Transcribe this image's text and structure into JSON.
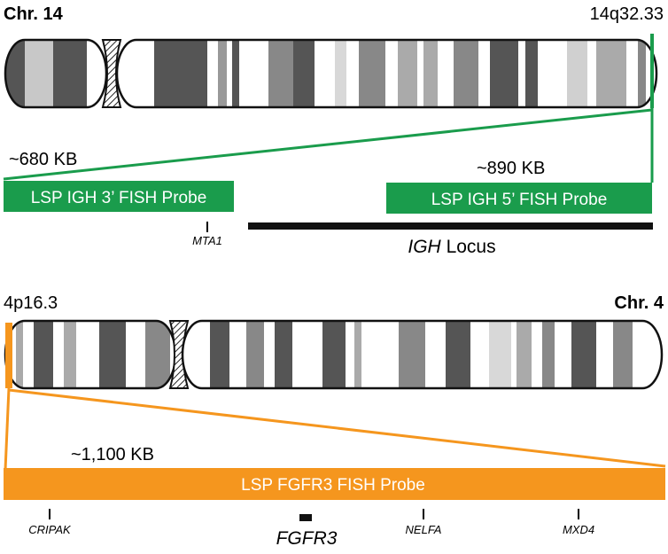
{
  "chr14": {
    "title": "Chr. 14",
    "band_label": "14q32.33",
    "probe3": {
      "size": "~680 KB",
      "label": "LSP IGH 3’ FISH Probe",
      "color": "#1a9c4c"
    },
    "probe5": {
      "size": "~890 KB",
      "label": "LSP IGH 5’ FISH Probe",
      "color": "#1a9c4c"
    },
    "genes": {
      "mta1": "MTA1"
    },
    "locus": {
      "gene": "IGH",
      "suffix": " Locus"
    },
    "highlight_color": "#1a9c4c"
  },
  "chr4": {
    "title": "Chr. 4",
    "band_label": "4p16.3",
    "probe": {
      "size": "~1,100 KB",
      "label": "LSP FGFR3 FISH Probe",
      "color": "#f5961e"
    },
    "genes": {
      "cripak": "CRIPAK",
      "fgfr3": "FGFR3",
      "nelfa": "NELFA",
      "mxd4": "MXD4"
    },
    "highlight_color": "#f5961e"
  }
}
